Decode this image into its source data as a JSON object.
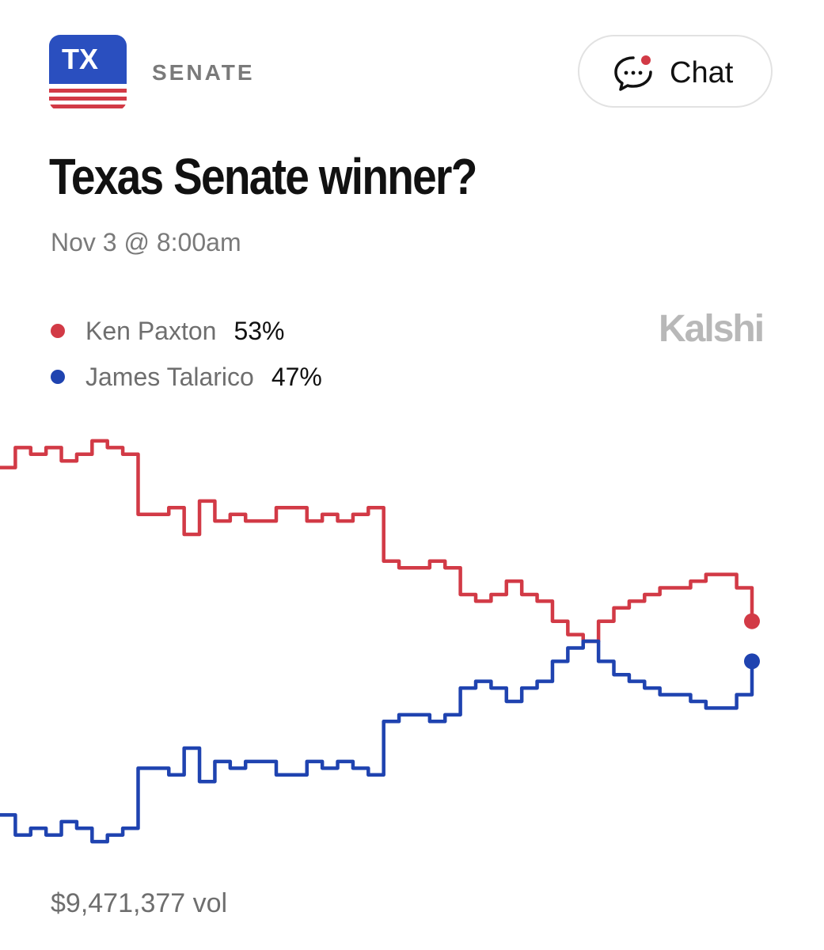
{
  "header": {
    "badge_text": "TX",
    "category": "SENATE",
    "chat_label": "Chat"
  },
  "market": {
    "title": "Texas Senate winner?",
    "date": "Nov 3 @ 8:00am",
    "brand": "Kalshi",
    "volume": "$9,471,377 vol"
  },
  "colors": {
    "paxton": "#d23a46",
    "talarico": "#1f43b0",
    "badge_blue": "#2a4fbf",
    "badge_red": "#d23a46"
  },
  "legend": [
    {
      "name": "Ken Paxton",
      "pct": "53%",
      "color": "#d23a46"
    },
    {
      "name": "James Talarico",
      "pct": "47%",
      "color": "#1f43b0"
    }
  ],
  "chart_data": {
    "type": "line",
    "title": "",
    "xlabel": "",
    "ylabel": "",
    "ylim": [
      0,
      100
    ],
    "x": [
      0,
      1,
      2,
      3,
      4,
      5,
      6,
      7,
      8,
      9,
      10,
      11,
      12,
      13,
      14,
      15,
      16,
      17,
      18,
      19,
      20,
      21,
      22,
      23,
      24,
      25,
      26,
      27,
      28,
      29,
      30,
      31,
      32,
      33,
      34,
      35,
      36,
      37,
      38,
      39,
      40,
      41,
      42,
      43,
      44,
      45,
      46,
      47,
      48,
      49
    ],
    "series": [
      {
        "name": "Ken Paxton",
        "values": [
          76,
          79,
          78,
          79,
          77,
          78,
          80,
          79,
          78,
          69,
          69,
          70,
          66,
          71,
          68,
          69,
          68,
          68,
          70,
          70,
          68,
          69,
          68,
          69,
          70,
          62,
          61,
          61,
          62,
          61,
          57,
          56,
          57,
          59,
          57,
          56,
          53,
          51,
          50,
          53,
          55,
          56,
          57,
          58,
          58,
          59,
          60,
          60,
          58,
          53
        ]
      },
      {
        "name": "James Talarico",
        "values": [
          24,
          21,
          22,
          21,
          23,
          22,
          20,
          21,
          22,
          31,
          31,
          30,
          34,
          29,
          32,
          31,
          32,
          32,
          30,
          30,
          32,
          31,
          32,
          31,
          30,
          38,
          39,
          39,
          38,
          39,
          43,
          44,
          43,
          41,
          43,
          44,
          47,
          49,
          50,
          47,
          45,
          44,
          43,
          42,
          42,
          41,
          40,
          40,
          42,
          47
        ]
      }
    ]
  }
}
